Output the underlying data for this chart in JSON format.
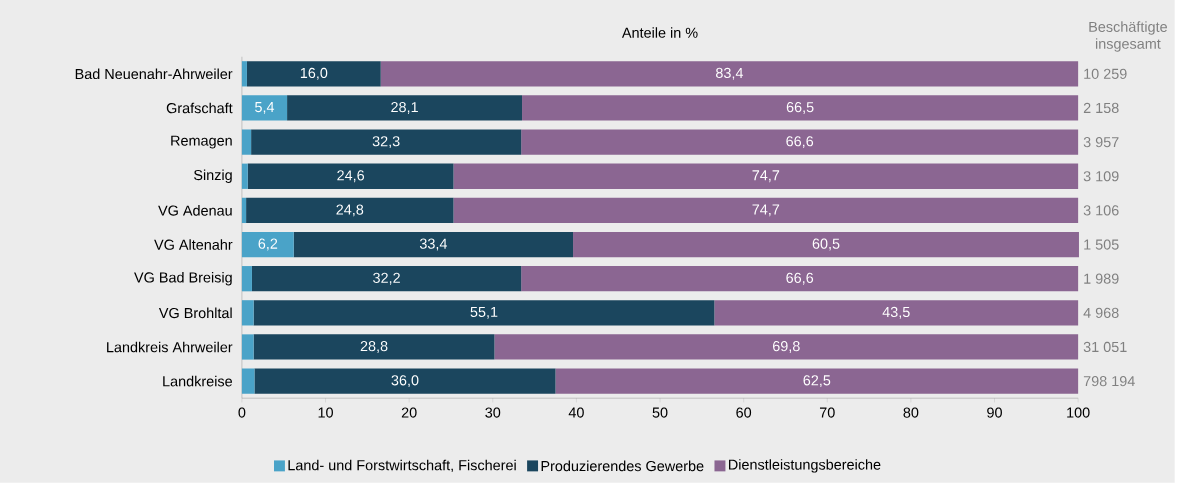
{
  "chart_data": {
    "type": "bar",
    "orientation": "horizontal",
    "stacked": true,
    "title": "Anteile in %",
    "categories": [
      "Bad Neuenahr-Ahrweiler",
      "Grafschaft",
      "Remagen",
      "Sinzig",
      "VG Adenau",
      "VG Altenahr",
      "VG Bad Breisig",
      "VG Brohltal",
      "Landkreis Ahrweiler",
      "Landkreise"
    ],
    "series": [
      {
        "name": "Land- und Forstwirtschaft, Fischerei",
        "color": "#4aa3c8",
        "values": [
          0.6,
          5.4,
          1.1,
          0.7,
          0.5,
          6.2,
          1.2,
          1.4,
          1.4,
          1.5
        ],
        "value_labels": [
          null,
          "5,4",
          null,
          null,
          null,
          "6,2",
          null,
          null,
          null,
          null
        ]
      },
      {
        "name": "Produzierendes Gewerbe",
        "color": "#1b465e",
        "values": [
          16.0,
          28.1,
          32.3,
          24.6,
          24.8,
          33.4,
          32.2,
          55.1,
          28.8,
          36.0
        ],
        "value_labels": [
          "16,0",
          "28,1",
          "32,3",
          "24,6",
          "24,8",
          "33,4",
          "32,2",
          "55,1",
          "28,8",
          "36,0"
        ]
      },
      {
        "name": "Dienstleistungsbereiche",
        "color": "#8b6692",
        "values": [
          83.4,
          66.5,
          66.6,
          74.7,
          74.7,
          60.5,
          66.6,
          43.5,
          69.8,
          62.5
        ],
        "value_labels": [
          "83,4",
          "66,5",
          "66,6",
          "74,7",
          "74,7",
          "60,5",
          "66,6",
          "43,5",
          "69,8",
          "62,5"
        ]
      }
    ],
    "xlim": [
      0,
      100
    ],
    "xticks": [
      0,
      10,
      20,
      30,
      40,
      50,
      60,
      70,
      80,
      90,
      100
    ],
    "legend": "bottom",
    "annotations": [
      "Beschäftigte insgesamt",
      "10 259",
      "2 158",
      "3 957",
      "3 109",
      "3 106",
      "1 505",
      "1 989",
      "4 968",
      "31 051",
      "798 194"
    ]
  }
}
